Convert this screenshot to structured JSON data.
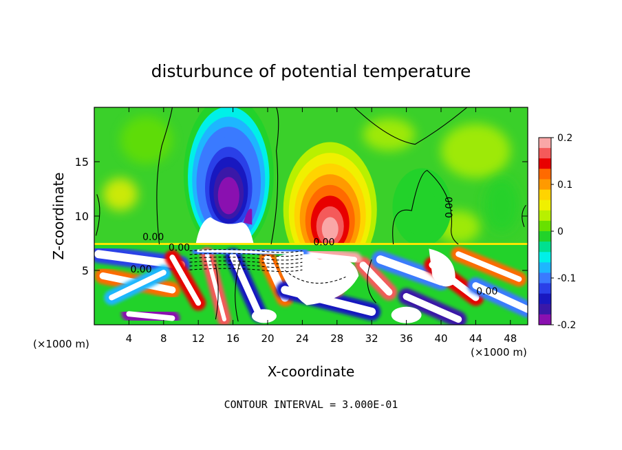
{
  "chart_data": {
    "type": "heatmap",
    "title": "disturbunce of potential temperature",
    "xlabel": "X-coordinate",
    "ylabel": "Z-coordinate",
    "x_unit_left": "(×1000 m)",
    "x_unit_right": "(×1000 m)",
    "xlim": [
      0,
      50
    ],
    "ylim": [
      0,
      20
    ],
    "x_ticks": [
      4,
      8,
      12,
      16,
      20,
      24,
      28,
      32,
      36,
      40,
      44,
      48
    ],
    "y_ticks": [
      5,
      10,
      15
    ],
    "colorbar": {
      "range": [
        -0.2,
        0.2
      ],
      "ticks": [
        "0.2",
        "0.1",
        "0",
        "-0.1",
        "-0.2"
      ],
      "colors": [
        "#f9a7a7",
        "#f45a5a",
        "#e80000",
        "#ff6a00",
        "#ff9a00",
        "#ffd400",
        "#f0f000",
        "#b8f000",
        "#68e000",
        "#22d22a",
        "#00e090",
        "#00f0e8",
        "#1eb6ff",
        "#3a7aff",
        "#2a40e8",
        "#1818c0",
        "#3a18a8",
        "#8a10b0"
      ]
    },
    "contour_labels": [
      "0.00",
      "0.00",
      "0.00",
      "0.00",
      "0.00"
    ],
    "footer": "CONTOUR INTERVAL = 3.000E-01",
    "features": [
      {
        "x": 15.5,
        "z": 14,
        "value": -0.2,
        "r": [
          4.5,
          6.5
        ]
      },
      {
        "x": 27,
        "z": 11,
        "value": 0.17,
        "r": [
          4.5,
          5.5
        ]
      },
      {
        "x": 38,
        "z": 11,
        "value": 0.02,
        "r": [
          3,
          3
        ]
      }
    ]
  }
}
